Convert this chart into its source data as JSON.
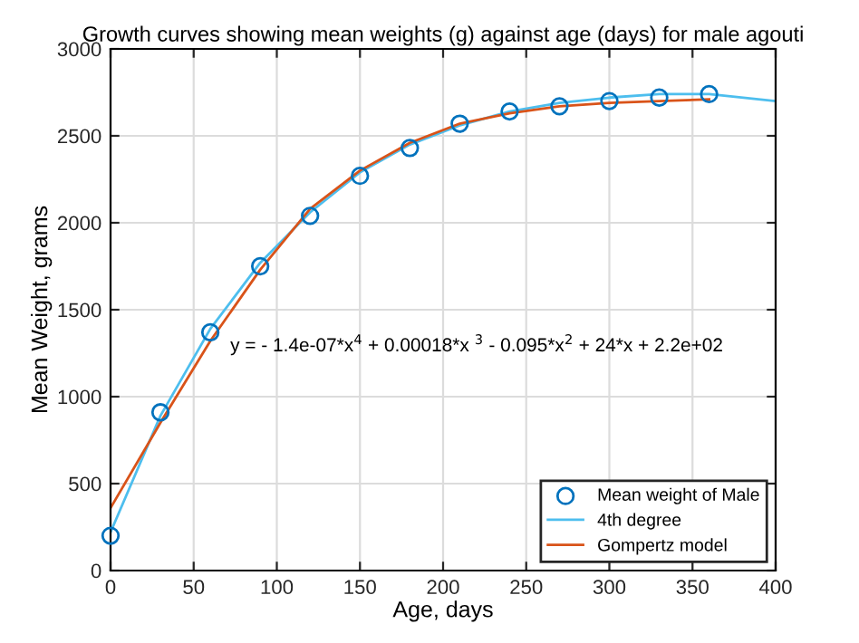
{
  "chart_data": {
    "type": "line",
    "title": "Growth curves showing mean weights (g) against age (days) for male agouti",
    "xlabel": "Age, days",
    "ylabel": "Mean Weight, grams",
    "annotations": [
      "y = - 1.4e-07*x$^{4}$ + 0.00018*x $^{3}$ - 0.095*x$^{2}$ + 24*x + 2.2e+02"
    ],
    "series": [
      {
        "name": "Mean weight of Male",
        "type": "scatter",
        "marker": "circle",
        "color": "#0072bd",
        "x": [
          0,
          30,
          60,
          90,
          120,
          150,
          180,
          210,
          240,
          270,
          300,
          330,
          360
        ],
        "values": [
          200,
          910,
          1370,
          1750,
          2040,
          2270,
          2430,
          2570,
          2640,
          2670,
          2700,
          2720,
          2740
        ]
      },
      {
        "name": "4th degree",
        "color": "#4dbeee",
        "x": [
          0,
          30,
          60,
          90,
          120,
          150,
          180,
          210,
          240,
          270,
          300,
          330,
          360,
          400
        ],
        "values": [
          220,
          890,
          1390,
          1770,
          2060,
          2290,
          2450,
          2560,
          2640,
          2690,
          2720,
          2740,
          2740,
          2700
        ]
      },
      {
        "name": "Gompertz model",
        "color": "#d95319",
        "x": [
          0,
          30,
          60,
          90,
          120,
          150,
          180,
          210,
          240,
          270,
          300,
          330,
          360
        ],
        "values": [
          360,
          850,
          1320,
          1730,
          2080,
          2300,
          2460,
          2570,
          2630,
          2670,
          2690,
          2700,
          2710
        ]
      }
    ],
    "xlim": [
      0,
      400
    ],
    "xticks": [
      0,
      50,
      100,
      150,
      200,
      250,
      300,
      350,
      400
    ],
    "ylim": [
      0,
      3000
    ],
    "yticks": [
      0,
      500,
      1000,
      1500,
      2000,
      2500,
      3000
    ],
    "grid": true,
    "legend": "bottom right"
  }
}
